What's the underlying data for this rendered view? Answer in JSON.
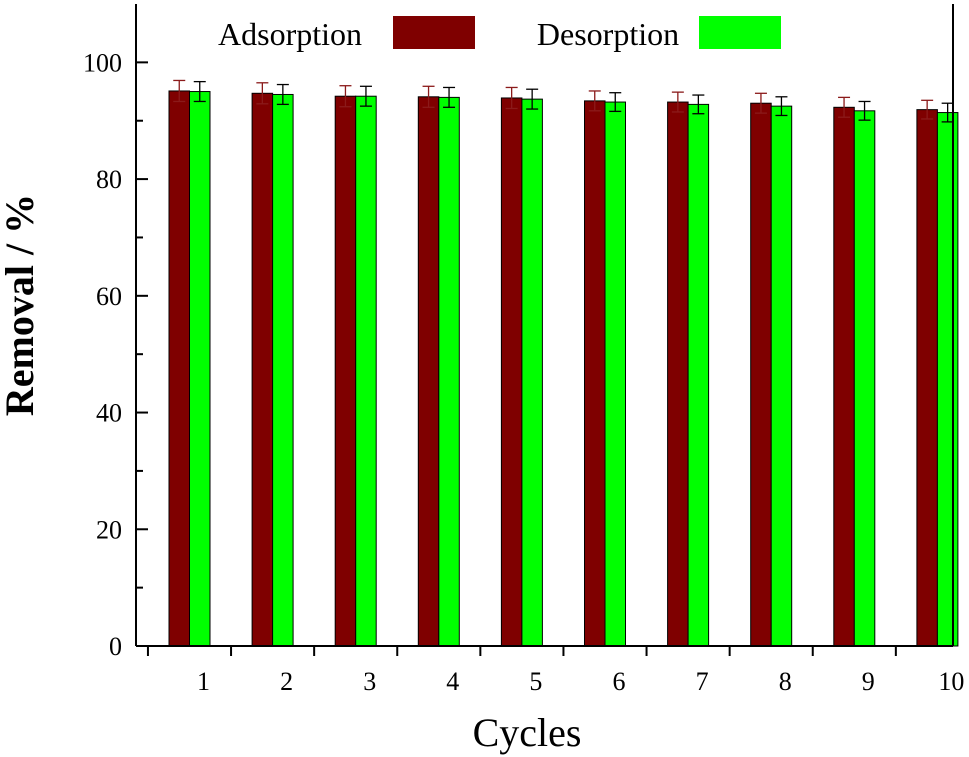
{
  "chart_data": {
    "type": "bar",
    "title": "",
    "xlabel": "Cycles",
    "ylabel": "Removal / %",
    "categories": [
      "1",
      "2",
      "3",
      "4",
      "5",
      "6",
      "7",
      "8",
      "9",
      "10"
    ],
    "ylim": [
      0,
      110
    ],
    "yticks": [
      "0",
      "20",
      "40",
      "60",
      "80",
      "100"
    ],
    "grid": false,
    "legend_position": "top",
    "series": [
      {
        "name": "Adsorption",
        "color": "#7f0000",
        "error_color": "#8b1a1a",
        "values": [
          95.1,
          94.7,
          94.2,
          94.1,
          93.9,
          93.4,
          93.2,
          93.0,
          92.3,
          91.9
        ],
        "errors": [
          1.8,
          1.8,
          1.8,
          1.8,
          1.8,
          1.7,
          1.7,
          1.7,
          1.7,
          1.6
        ]
      },
      {
        "name": "Desorption",
        "color": "#00ff00",
        "error_color": "#000000",
        "values": [
          95.0,
          94.5,
          94.2,
          94.0,
          93.7,
          93.2,
          92.8,
          92.5,
          91.7,
          91.4
        ],
        "errors": [
          1.7,
          1.7,
          1.7,
          1.7,
          1.7,
          1.6,
          1.6,
          1.6,
          1.6,
          1.6
        ]
      }
    ]
  }
}
